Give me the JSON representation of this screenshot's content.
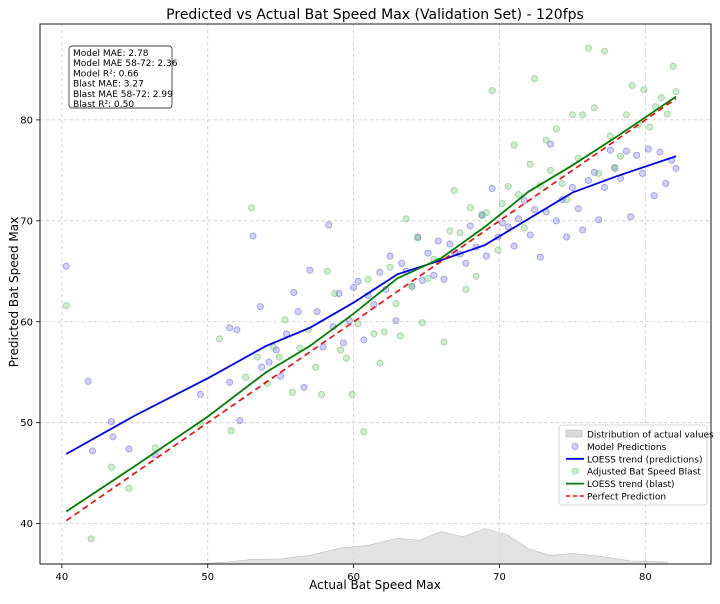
{
  "chart_data": {
    "type": "scatter",
    "title": "Predicted vs Actual Bat Speed Max (Validation Set) - 120fps",
    "xlabel": "Actual Bat Speed Max",
    "ylabel": "Predicted Bat Speed Max",
    "xlim": [
      38.5,
      84.5
    ],
    "ylim": [
      36.0,
      89.5
    ],
    "xticks": [
      40,
      50,
      60,
      70,
      80
    ],
    "yticks": [
      40,
      50,
      60,
      70,
      80
    ],
    "grid": true,
    "legend_position": "lower-right",
    "stats_box": [
      "Model MAE: 2.78",
      "Model MAE 58-72: 2.36",
      "Model R²: 0.66",
      "Blast MAE: 3.27",
      "Blast MAE 58-72: 2.99",
      "Blast R²: 0.50"
    ],
    "colors": {
      "model_points": "#5555ee",
      "blast_points": "#55bb55",
      "loess_predictions": "#0000ee",
      "loess_blast": "#008000",
      "perfect": "#ff0000",
      "distribution": "#d9d9d9"
    },
    "distribution": {
      "name": "Distribution of actual values",
      "x": [
        49,
        51,
        53,
        55,
        57,
        59,
        61,
        63,
        64.5,
        66,
        67.5,
        69,
        70.5,
        72,
        73.5,
        75,
        77,
        79,
        81.5
      ],
      "y": [
        36.0,
        36.15,
        36.45,
        36.5,
        36.85,
        37.55,
        37.85,
        38.55,
        38.35,
        39.2,
        38.7,
        39.5,
        38.9,
        37.5,
        36.85,
        37.05,
        36.75,
        36.3,
        36.2
      ]
    },
    "series": [
      {
        "name": "Model Predictions",
        "kind": "scatter",
        "x": [
          40.3,
          41.8,
          42.1,
          43.4,
          43.5,
          44.6,
          46.4,
          49.5,
          51.5,
          51.5,
          52,
          52.2,
          53.1,
          53.6,
          53.7,
          54.2,
          54.7,
          55.0,
          55.4,
          55.9,
          56.2,
          56.6,
          57.0,
          57.5,
          57.9,
          58.3,
          58.6,
          59.0,
          59.3,
          59.7,
          60.0,
          60.3,
          60.7,
          61.0,
          61.4,
          61.8,
          62.2,
          62.5,
          62.9,
          63.3,
          63.6,
          64.0,
          64.4,
          64.7,
          65.1,
          65.5,
          65.8,
          66.2,
          66.6,
          66.9,
          67.3,
          67.7,
          68.0,
          68.4,
          68.8,
          69.1,
          69.5,
          69.9,
          70.2,
          70.6,
          71.0,
          71.3,
          71.7,
          72.1,
          72.4,
          72.8,
          73.2,
          73.5,
          73.9,
          74.3,
          74.6,
          75.0,
          75.4,
          75.7,
          76.1,
          76.5,
          76.8,
          77.2,
          77.6,
          77.9,
          78.3,
          78.7,
          79.0,
          79.4,
          79.8,
          80.2,
          80.6,
          81.0,
          81.4,
          81.8,
          82.1
        ],
        "y": [
          65.5,
          54.1,
          47.2,
          50.1,
          48.6,
          47.4,
          46.8,
          52.8,
          59.4,
          54.0,
          59.2,
          50.2,
          68.5,
          61.5,
          55.5,
          56.0,
          57.2,
          54.6,
          58.8,
          62.9,
          61.0,
          53.5,
          65.1,
          61.0,
          57.5,
          69.6,
          59.5,
          62.8,
          57.9,
          60.1,
          63.4,
          64.0,
          58.2,
          62.6,
          61.7,
          64.9,
          63.2,
          66.5,
          60.1,
          65.8,
          65.0,
          63.5,
          68.4,
          64.1,
          66.8,
          64.6,
          68.0,
          64.2,
          67.7,
          66.9,
          66.7,
          65.8,
          69.5,
          67.4,
          70.6,
          66.5,
          73.2,
          68.4,
          69.8,
          69.4,
          67.5,
          70.2,
          72.0,
          68.6,
          71.1,
          66.4,
          70.9,
          77.6,
          70.0,
          72.1,
          68.4,
          73.3,
          71.2,
          69.1,
          74.0,
          74.8,
          70.1,
          73.3,
          77.0,
          75.2,
          74.2,
          76.9,
          70.4,
          76.5,
          74.7,
          77.1,
          72.5,
          76.8,
          73.7,
          76.0,
          75.2
        ]
      },
      {
        "name": "Adjusted Bat Speed Blast",
        "kind": "scatter",
        "x": [
          40.3,
          42.0,
          43.4,
          44.6,
          46.4,
          49.5,
          50.8,
          51.6,
          52.6,
          53.0,
          53.4,
          54.1,
          54.5,
          54.9,
          55.3,
          55.8,
          56.3,
          56.9,
          57.4,
          57.8,
          58.2,
          58.7,
          59.1,
          59.5,
          59.9,
          60.3,
          60.7,
          61.0,
          61.4,
          61.8,
          62.1,
          62.5,
          62.9,
          63.2,
          63.6,
          64.0,
          64.4,
          64.7,
          65.1,
          65.5,
          65.8,
          66.2,
          66.6,
          66.9,
          67.3,
          67.7,
          68.0,
          68.4,
          68.8,
          69.1,
          69.5,
          69.9,
          70.2,
          70.6,
          71.0,
          71.3,
          71.7,
          72.1,
          72.4,
          72.8,
          73.2,
          73.5,
          73.9,
          74.3,
          74.6,
          75.0,
          75.4,
          75.7,
          76.1,
          76.5,
          76.8,
          77.2,
          77.6,
          77.9,
          78.3,
          78.7,
          79.1,
          79.5,
          79.9,
          80.3,
          80.7,
          81.1,
          81.5,
          81.9,
          82.1
        ],
        "y": [
          61.6,
          38.5,
          45.6,
          43.5,
          47.5,
          49.8,
          58.3,
          49.2,
          54.5,
          71.3,
          56.5,
          53.9,
          57.5,
          56.5,
          60.2,
          53.0,
          57.4,
          59.2,
          55.5,
          52.8,
          65.0,
          62.8,
          57.2,
          56.4,
          52.8,
          59.8,
          49.1,
          64.2,
          58.8,
          55.9,
          59.0,
          65.4,
          61.8,
          58.6,
          70.2,
          63.5,
          68.3,
          59.9,
          64.3,
          66.2,
          66.0,
          58.0,
          69.0,
          73.0,
          68.8,
          63.2,
          71.3,
          64.5,
          70.5,
          70.8,
          82.9,
          67.1,
          71.7,
          73.4,
          77.5,
          72.6,
          69.3,
          75.6,
          84.1,
          73.5,
          78.0,
          75.0,
          79.1,
          73.7,
          72.1,
          80.5,
          76.2,
          80.5,
          87.1,
          81.2,
          74.7,
          86.8,
          78.4,
          75.3,
          76.4,
          80.5,
          83.4,
          79.5,
          83.0,
          79.3,
          81.3,
          82.2,
          80.6,
          85.3,
          82.8
        ]
      },
      {
        "name": "LOESS trend (predictions)",
        "kind": "line",
        "x": [
          40.3,
          45,
          50,
          54,
          57,
          60,
          63,
          66,
          69,
          72,
          75,
          78,
          82.1
        ],
        "y": [
          46.9,
          50.7,
          54.4,
          57.6,
          59.4,
          61.9,
          64.7,
          66.1,
          67.6,
          70.2,
          72.8,
          74.4,
          76.4
        ]
      },
      {
        "name": "LOESS trend (blast)",
        "kind": "line",
        "x": [
          40.3,
          45,
          50,
          54,
          57,
          60,
          63,
          66,
          69,
          72,
          75,
          78,
          82.1
        ],
        "y": [
          41.2,
          45.7,
          50.6,
          55.0,
          57.6,
          60.8,
          64.3,
          66.3,
          69.4,
          72.9,
          75.5,
          78.3,
          82.3
        ]
      },
      {
        "name": "Perfect Prediction",
        "kind": "line",
        "x": [
          40.3,
          82.1
        ],
        "y": [
          40.3,
          82.1
        ]
      }
    ],
    "legend": [
      "Distribution of actual values",
      "Model Predictions",
      "LOESS trend (predictions)",
      "Adjusted Bat Speed Blast",
      "LOESS trend (blast)",
      "Perfect Prediction"
    ]
  }
}
